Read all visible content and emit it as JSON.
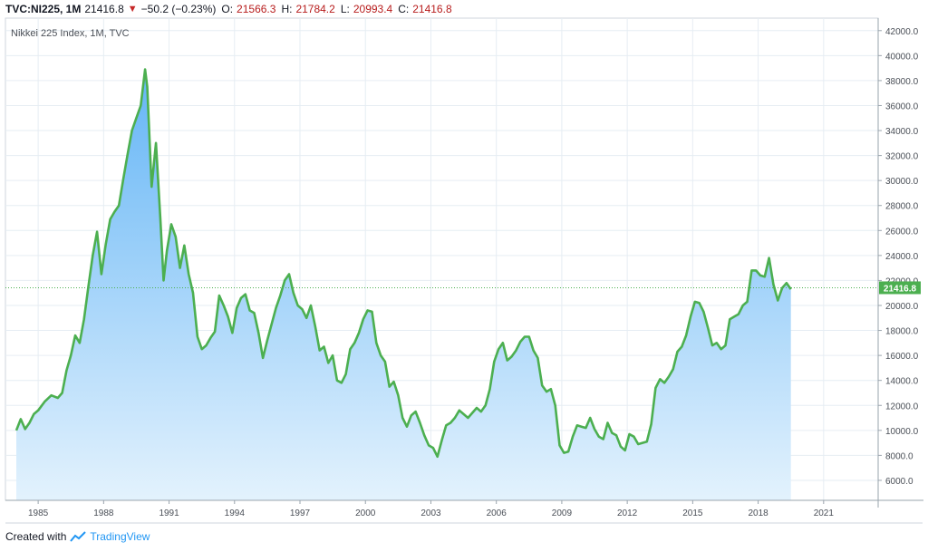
{
  "header": {
    "symbol": "TVC:NI225, 1M",
    "last": "21416.8",
    "change": "−50.2 (−0.23%)",
    "open_label": "O:",
    "open": "21566.3",
    "high_label": "H:",
    "high": "21784.2",
    "low_label": "L:",
    "low": "20993.4",
    "close_label": "C:",
    "close": "21416.8"
  },
  "footer": {
    "created": "Created with",
    "brand": "TradingView",
    "logo_icon": "tradingview-logo-icon"
  },
  "colors": {
    "line": "#4caf50",
    "area_top": "#64b5f6",
    "area_bottom": "#e3f2fd",
    "grid": "#e6edf3",
    "last_label_bg": "#4caf50",
    "down_arrow": "#c62828"
  },
  "chart_data": {
    "type": "area",
    "title": "Nikkei 225 Index, 1M, TVC",
    "x_tick_labels": [
      "1985",
      "1988",
      "1991",
      "1994",
      "1997",
      "2000",
      "2003",
      "2006",
      "2009",
      "2012",
      "2015",
      "2018",
      "2021"
    ],
    "x_ticks": [
      1985,
      1988,
      1991,
      1994,
      1997,
      2000,
      2003,
      2006,
      2009,
      2012,
      2015,
      2018,
      2021
    ],
    "y_tick_labels": [
      "6000.0",
      "8000.0",
      "10000.0",
      "12000.0",
      "14000.0",
      "16000.0",
      "18000.0",
      "20000.0",
      "22000.0",
      "24000.0",
      "26000.0",
      "28000.0",
      "30000.0",
      "32000.0",
      "34000.0",
      "36000.0",
      "38000.0",
      "40000.0",
      "42000.0"
    ],
    "y_ticks": [
      6000,
      8000,
      10000,
      12000,
      14000,
      16000,
      18000,
      20000,
      22000,
      24000,
      26000,
      28000,
      30000,
      32000,
      34000,
      36000,
      38000,
      40000,
      42000
    ],
    "last_value": 21416.8,
    "last_label": "21416.8",
    "grid": true,
    "x_range": [
      1983.5,
      2023.5
    ],
    "y_range": [
      4400,
      43000
    ],
    "series": [
      {
        "x": [
          1984.0,
          1984.2,
          1984.4,
          1984.6,
          1984.8,
          1985.0,
          1985.3,
          1985.6,
          1985.9,
          1986.1,
          1986.3,
          1986.5,
          1986.7,
          1986.9,
          1987.1,
          1987.3,
          1987.5,
          1987.7,
          1987.9,
          1988.1,
          1988.3,
          1988.5,
          1988.7,
          1988.9,
          1989.1,
          1989.3,
          1989.5,
          1989.7,
          1989.9,
          1990.0,
          1990.2,
          1990.4,
          1990.6,
          1990.75,
          1990.9,
          1991.1,
          1991.3,
          1991.5,
          1991.7,
          1991.9,
          1992.1,
          1992.3,
          1992.5,
          1992.7,
          1992.9,
          1993.1,
          1993.3,
          1993.5,
          1993.7,
          1993.9,
          1994.1,
          1994.3,
          1994.5,
          1994.7,
          1994.9,
          1995.1,
          1995.3,
          1995.5,
          1995.7,
          1995.9,
          1996.1,
          1996.3,
          1996.5,
          1996.7,
          1996.9,
          1997.1,
          1997.3,
          1997.5,
          1997.7,
          1997.9,
          1998.1,
          1998.3,
          1998.5,
          1998.7,
          1998.9,
          1999.1,
          1999.3,
          1999.5,
          1999.7,
          1999.9,
          2000.1,
          2000.3,
          2000.5,
          2000.7,
          2000.9,
          2001.1,
          2001.3,
          2001.5,
          2001.7,
          2001.9,
          2002.1,
          2002.3,
          2002.5,
          2002.7,
          2002.9,
          2003.1,
          2003.3,
          2003.5,
          2003.7,
          2003.9,
          2004.1,
          2004.3,
          2004.5,
          2004.7,
          2004.9,
          2005.1,
          2005.3,
          2005.5,
          2005.7,
          2005.9,
          2006.1,
          2006.3,
          2006.5,
          2006.7,
          2006.9,
          2007.1,
          2007.3,
          2007.5,
          2007.7,
          2007.9,
          2008.1,
          2008.3,
          2008.5,
          2008.7,
          2008.9,
          2009.1,
          2009.3,
          2009.5,
          2009.7,
          2009.9,
          2010.1,
          2010.3,
          2010.5,
          2010.7,
          2010.9,
          2011.1,
          2011.3,
          2011.5,
          2011.7,
          2011.9,
          2012.1,
          2012.3,
          2012.5,
          2012.7,
          2012.9,
          2013.1,
          2013.3,
          2013.5,
          2013.7,
          2013.9,
          2014.1,
          2014.3,
          2014.5,
          2014.7,
          2014.9,
          2015.1,
          2015.3,
          2015.5,
          2015.7,
          2015.9,
          2016.1,
          2016.3,
          2016.5,
          2016.7,
          2016.9,
          2017.1,
          2017.3,
          2017.5,
          2017.7,
          2017.9,
          2018.1,
          2018.3,
          2018.5,
          2018.7,
          2018.9,
          2019.1,
          2019.3,
          2019.5
        ],
        "y": [
          10000,
          10900,
          10100,
          10600,
          11300,
          11600,
          12300,
          12800,
          12600,
          13000,
          14800,
          16000,
          17600,
          17000,
          18900,
          21500,
          24000,
          25900,
          22500,
          24900,
          26900,
          27500,
          28000,
          30100,
          32100,
          34000,
          35000,
          36000,
          38900,
          37500,
          29500,
          33000,
          27000,
          22000,
          24400,
          26500,
          25500,
          23000,
          24800,
          22500,
          21000,
          17500,
          16500,
          16800,
          17400,
          17900,
          20800,
          20000,
          19100,
          17800,
          19800,
          20600,
          20900,
          19600,
          19400,
          17800,
          15800,
          17200,
          18500,
          19800,
          20800,
          22000,
          22500,
          21000,
          20000,
          19700,
          19000,
          20000,
          18300,
          16400,
          16700,
          15400,
          16000,
          14000,
          13800,
          14500,
          16500,
          17000,
          17800,
          18900,
          19600,
          19500,
          17000,
          16000,
          15500,
          13500,
          13900,
          12800,
          11000,
          10300,
          11200,
          11500,
          10600,
          9600,
          8800,
          8600,
          7900,
          9200,
          10400,
          10600,
          11000,
          11600,
          11300,
          11000,
          11400,
          11800,
          11500,
          12000,
          13300,
          15500,
          16500,
          17000,
          15600,
          15900,
          16400,
          17100,
          17500,
          17500,
          16400,
          15800,
          13600,
          13100,
          13300,
          12000,
          8800,
          8200,
          8300,
          9500,
          10400,
          10300,
          10200,
          11000,
          10100,
          9500,
          9300,
          10600,
          9800,
          9600,
          8700,
          8400,
          9700,
          9500,
          8900,
          9000,
          9100,
          10500,
          13400,
          14100,
          13800,
          14300,
          14900,
          16300,
          16700,
          17600,
          19100,
          20300,
          20200,
          19500,
          18200,
          16800,
          17000,
          16500,
          16800,
          18900,
          19100,
          19300,
          20000,
          20300,
          22800,
          22800,
          22400,
          22300,
          23800,
          21700,
          20400,
          21400,
          21800,
          21300
        ]
      }
    ]
  }
}
